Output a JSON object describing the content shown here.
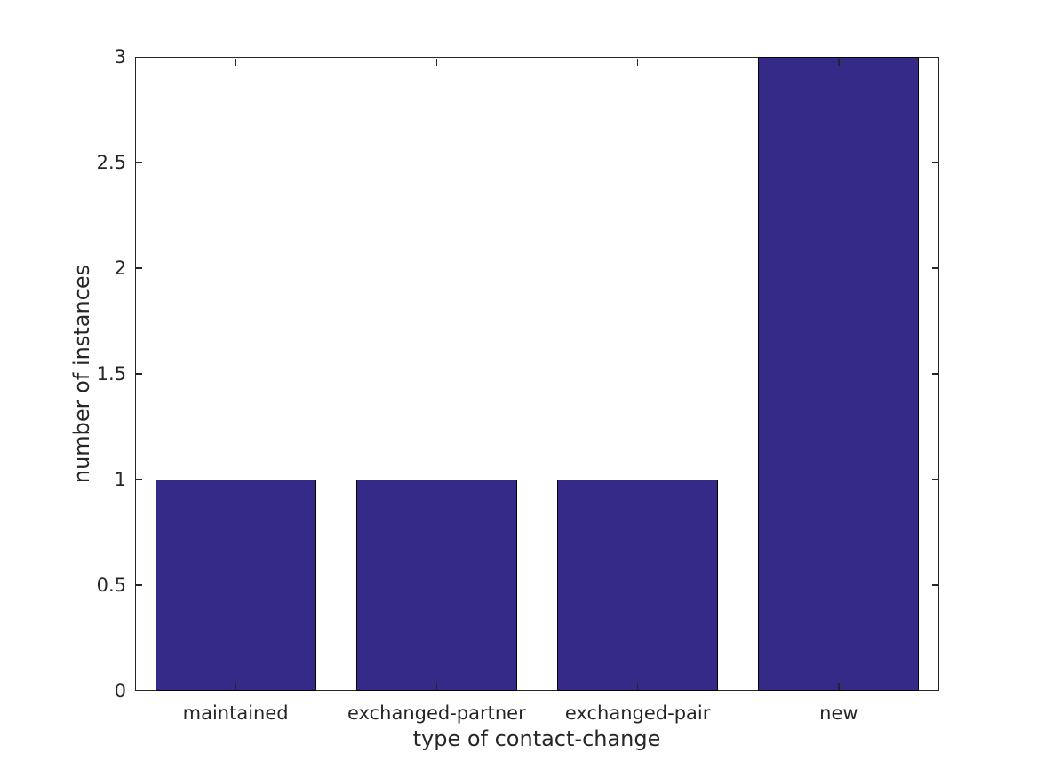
{
  "figure": {
    "background_color": "#ffffff",
    "axis_color": "#262626",
    "text_color": "#262626"
  },
  "chart_data": {
    "type": "bar",
    "title": "",
    "xlabel": "type of contact-change",
    "ylabel": "number of instances",
    "categories": [
      "maintained",
      "exchanged-partner",
      "exchanged-pair",
      "new"
    ],
    "values": [
      1,
      1,
      1,
      3
    ],
    "ylim": [
      0,
      3
    ],
    "yticks": [
      0,
      0.5,
      1,
      1.5,
      2,
      2.5,
      3
    ],
    "ytick_labels": [
      "0",
      "0.5",
      "1",
      "1.5",
      "2",
      "2.5",
      "3"
    ],
    "bar_color": "#352A87",
    "bar_edge_color": "#000000",
    "bar_width_fraction": 0.8,
    "grid": false,
    "tick_direction": "in",
    "box": true
  }
}
